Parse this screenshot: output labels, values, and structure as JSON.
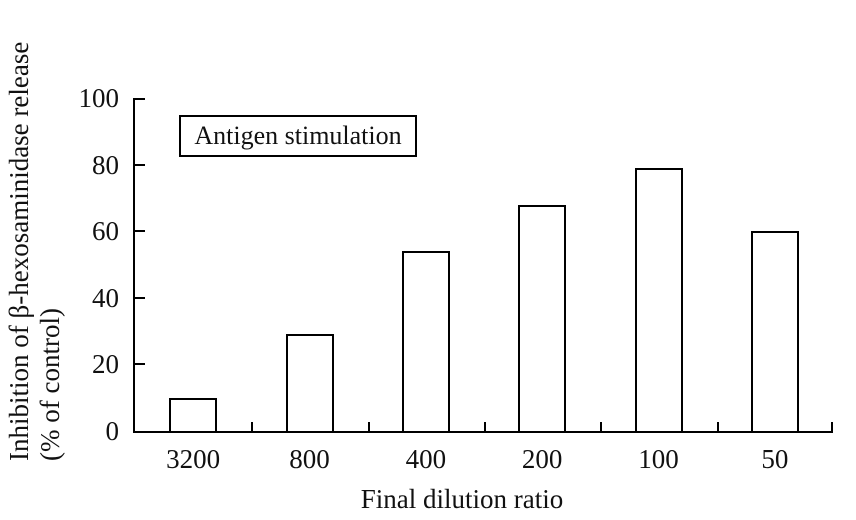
{
  "chart_data": {
    "type": "bar",
    "title": "",
    "annotation": "Antigen stimulation",
    "xlabel": "Final dilution ratio",
    "ylabel_line1": "Inhibition of β-hexosaminidase release",
    "ylabel_line2": "(% of control)",
    "categories": [
      "3200",
      "800",
      "400",
      "200",
      "100",
      "50"
    ],
    "values": [
      10,
      29,
      54,
      68,
      79,
      60
    ],
    "yticks": [
      0,
      20,
      40,
      60,
      80,
      100
    ],
    "ylim": [
      0,
      100
    ],
    "grid": false,
    "legend_position": "top-left-inside-box",
    "bar_fill": "#ffffff",
    "bar_border": "#000000",
    "axis_color": "#000000",
    "tick_style": "inside"
  }
}
